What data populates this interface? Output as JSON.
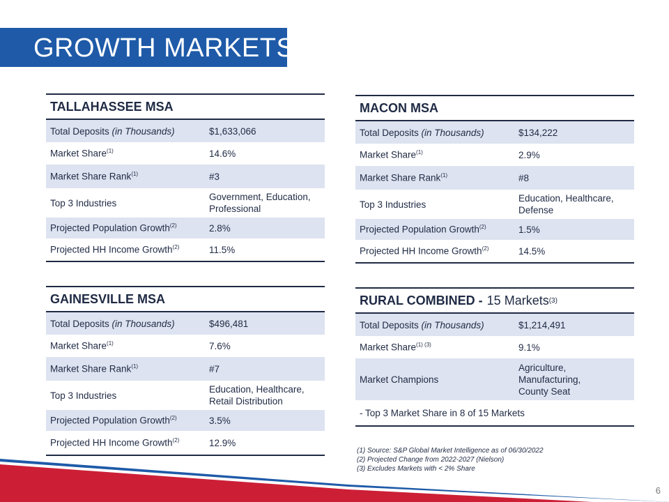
{
  "title": "GROWTH MARKETS",
  "panels": {
    "tallahassee": {
      "name": "TALLAHASSEE MSA",
      "rows": [
        {
          "label": "Total Deposits",
          "label_italic": " (in Thousands)",
          "sup": "",
          "value": "$1,633,066"
        },
        {
          "label": "Market Share",
          "label_italic": "",
          "sup": "(1)",
          "value": "14.6%"
        },
        {
          "label": "Market Share Rank",
          "label_italic": "",
          "sup": "(1)",
          "value": "#3"
        },
        {
          "label": "Top 3 Industries",
          "label_italic": "",
          "sup": "",
          "value": "Government, Education, Professional"
        },
        {
          "label": "Projected Population Growth",
          "label_italic": "",
          "sup": "(2)",
          "value": "2.8%"
        },
        {
          "label": "Projected HH Income Growth",
          "label_italic": "",
          "sup": "(2)",
          "value": "11.5%"
        }
      ]
    },
    "macon": {
      "name": "MACON MSA",
      "rows": [
        {
          "label": "Total Deposits",
          "label_italic": " (in Thousands)",
          "sup": "",
          "value": "$134,222"
        },
        {
          "label": "Market Share",
          "label_italic": "",
          "sup": "(1)",
          "value": "2.9%"
        },
        {
          "label": "Market Share Rank",
          "label_italic": "",
          "sup": "(1)",
          "value": "#8"
        },
        {
          "label": "Top 3 Industries",
          "label_italic": "",
          "sup": "",
          "value": "Education, Healthcare, Defense"
        },
        {
          "label": "Projected Population Growth",
          "label_italic": "",
          "sup": "(2)",
          "value": "1.5%"
        },
        {
          "label": "Projected HH Income Growth",
          "label_italic": "",
          "sup": "(2)",
          "value": "14.5%"
        }
      ]
    },
    "gainesville": {
      "name": "GAINESVILLE MSA",
      "rows": [
        {
          "label": "Total Deposits",
          "label_italic": " (in Thousands)",
          "sup": "",
          "value": "$496,481"
        },
        {
          "label": "Market Share",
          "label_italic": "",
          "sup": "(1)",
          "value": "7.6%"
        },
        {
          "label": "Market Share Rank",
          "label_italic": "",
          "sup": "(1)",
          "value": "#7"
        },
        {
          "label": "Top 3 Industries",
          "label_italic": "",
          "sup": "",
          "value": "Education, Healthcare, Retail Distribution"
        },
        {
          "label": "Projected Population Growth",
          "label_italic": "",
          "sup": "(2)",
          "value": "3.5%"
        },
        {
          "label": "Projected HH Income Growth",
          "label_italic": "",
          "sup": "(2)",
          "value": "12.9%"
        }
      ]
    },
    "rural": {
      "name": "RURAL COMBINED -",
      "name_light": "15 Markets",
      "name_sup": "(3)",
      "rows": [
        {
          "label": "Total Deposits",
          "label_italic": " (in Thousands)",
          "sup": "",
          "value": "$1,214,491"
        },
        {
          "label": "Market Share",
          "label_italic": "",
          "sup": "(1) (3)",
          "value": "9.1%"
        },
        {
          "label": "Market Champions",
          "label_italic": "",
          "sup": "",
          "value": "Agriculture, Manufacturing, County Seat"
        }
      ],
      "note": "- Top 3 Market Share in 8 of 15 Markets"
    }
  },
  "footnotes": [
    "(1) Source: S&P Global Market Intelligence as of 06/30/2022",
    "(2) Projected Change from 2022-2027 (Nielson)",
    "(3) Excludes Markets with < 2% Share"
  ],
  "page_number": "6",
  "colors": {
    "brand_blue": "#1e5aa8",
    "brand_red": "#cc1f36",
    "row_shade": "#dde3f0",
    "text_navy": "#1f2a44"
  }
}
